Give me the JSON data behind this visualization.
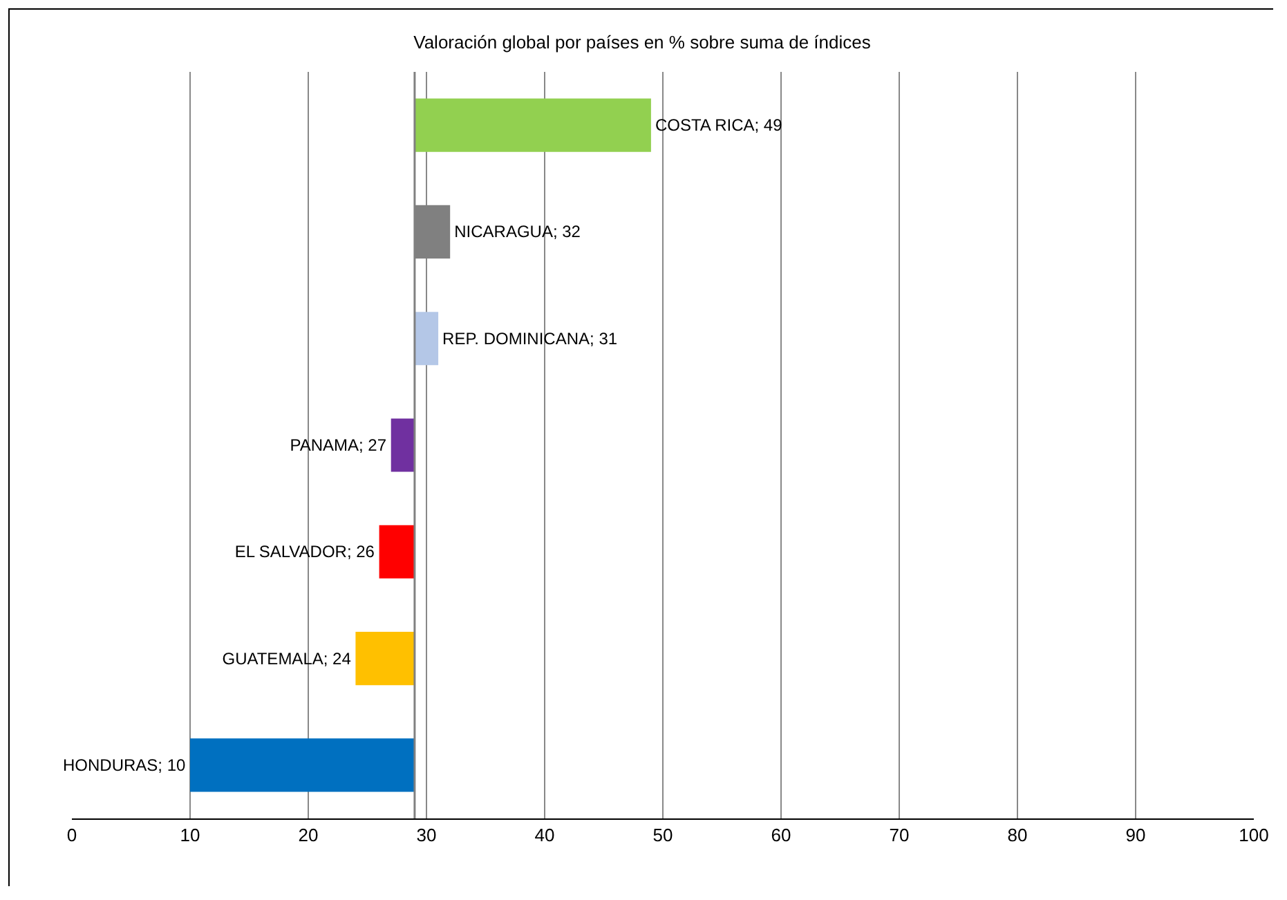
{
  "chart_data": {
    "type": "bar",
    "orientation": "horizontal",
    "title": "Valoración global por países en % sobre suma de índices",
    "categories": [
      null,
      null,
      null,
      null,
      null,
      null,
      null
    ],
    "base": [
      29,
      29,
      29,
      29,
      29,
      29,
      29
    ],
    "values": [
      20,
      3,
      2,
      -2,
      -3,
      -5,
      -19
    ],
    "value_labels": [
      "COSTA RICA; 49",
      "NICARAGUA; 32",
      "REP. DOMINICANA; 31",
      "PANAMA; 27",
      "EL SALVADOR; 26",
      "GUATEMALA; 24",
      "HONDURAS; 10"
    ],
    "colors": [
      "#92d050",
      "#808080",
      "#b4c7e7",
      "#7030a0",
      "#ff0000",
      "#ffc000",
      "#0070c0"
    ],
    "xlim": [
      0,
      100
    ],
    "xticks": [
      0,
      10,
      20,
      30,
      40,
      50,
      60,
      70,
      80,
      90,
      100
    ],
    "ref_lines": [
      {
        "axis": "x",
        "value": 29,
        "color": "#808080"
      }
    ],
    "grid": "x",
    "tick_labels": "x"
  }
}
